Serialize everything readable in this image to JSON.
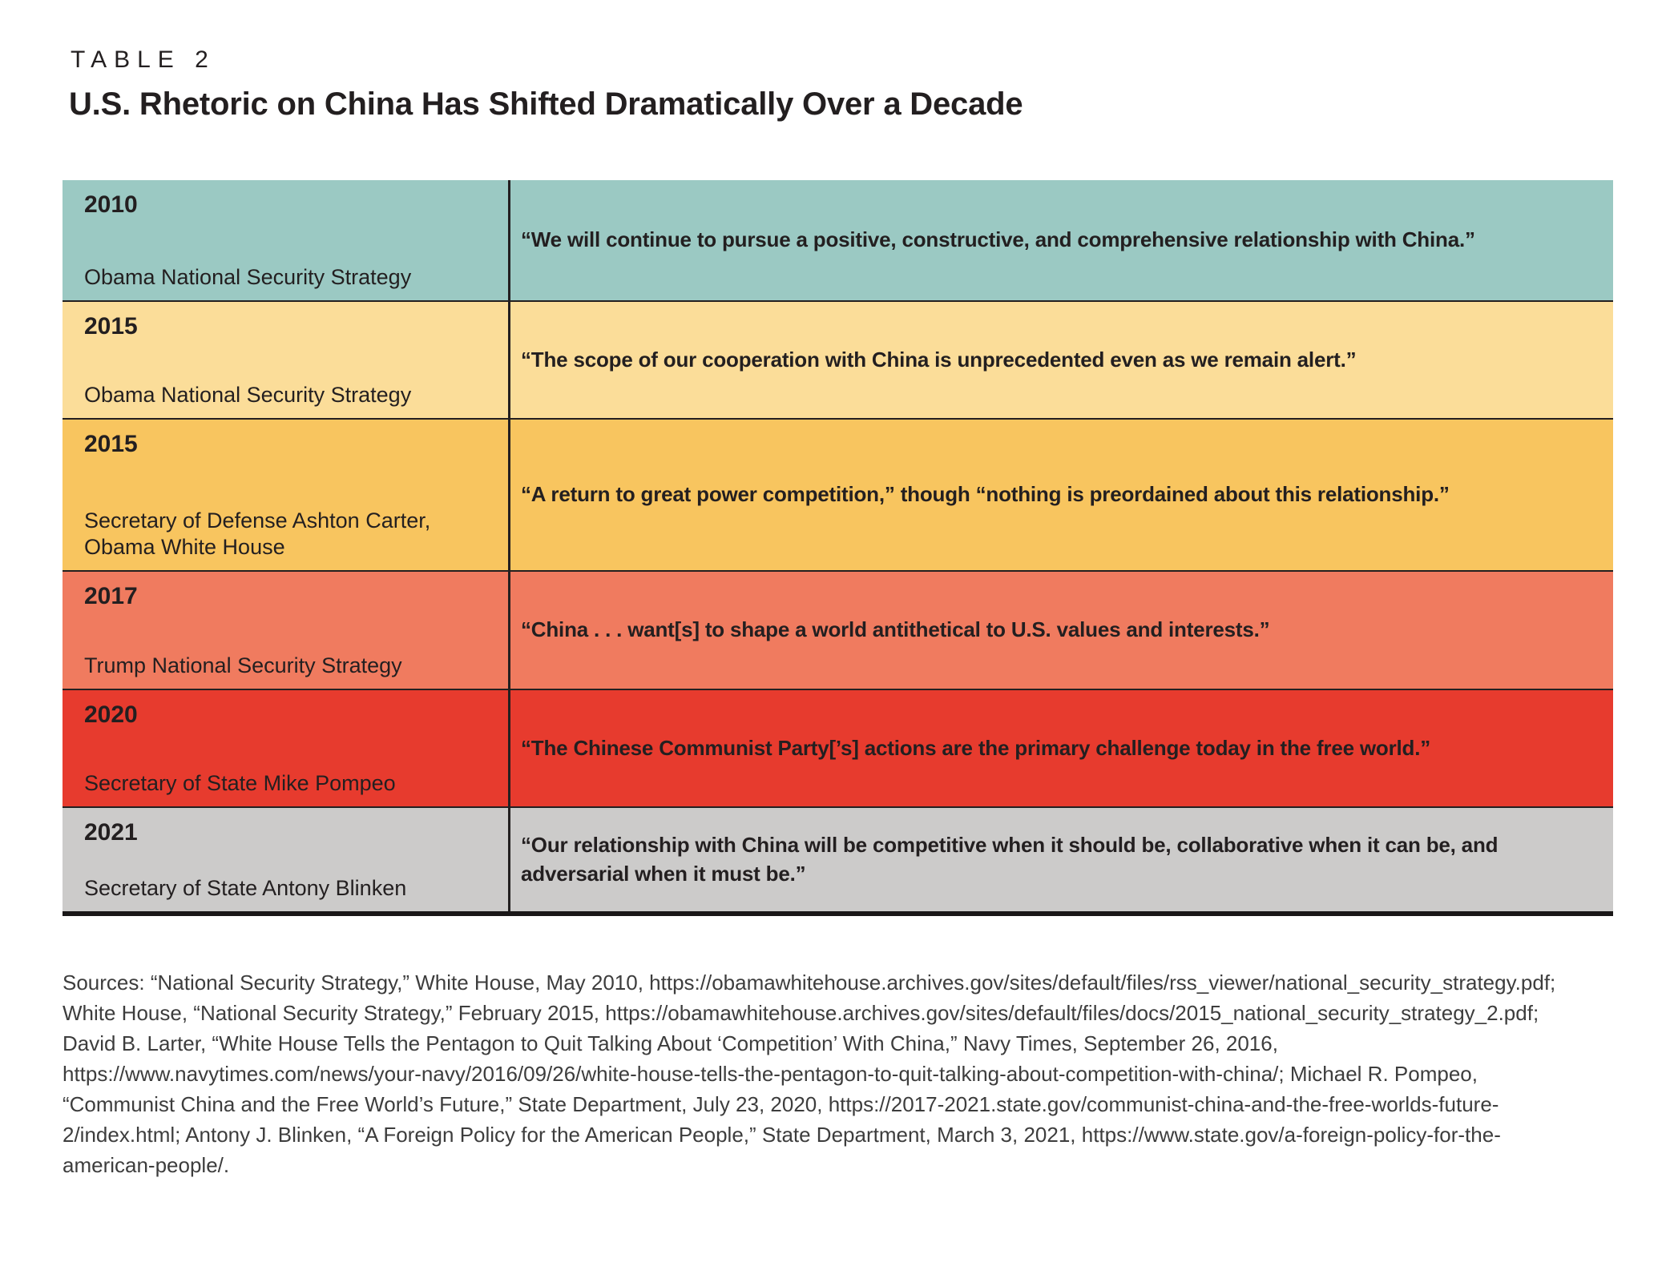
{
  "page": {
    "kicker": "TABLE 2",
    "title": "U.S. Rhetoric on China Has Shifted Dramatically Over a Decade"
  },
  "table": {
    "rows": [
      {
        "year": "2010",
        "attribution": "Obama National Security Strategy",
        "quote": "“We will continue to pursue a positive, constructive, and comprehensive relationship with China.”",
        "color": "#9bc9c3"
      },
      {
        "year": "2015",
        "attribution": "Obama National Security Strategy",
        "quote": "“The scope of our cooperation with China is unprecedented even as we remain alert.”",
        "color": "#fbdd99"
      },
      {
        "year": "2015",
        "attribution": "Secretary of Defense Ashton Carter,\nObama White House",
        "quote": "“A return to great power competition,” though “nothing is preordained about this relationship.”",
        "color": "#f8c55f"
      },
      {
        "year": "2017",
        "attribution": "Trump National Security Strategy",
        "quote": "“China . . . want[s] to shape a world antithetical to U.S. values and interests.”",
        "color": "#f07b5f"
      },
      {
        "year": "2020",
        "attribution": "Secretary of State Mike Pompeo",
        "quote": "“The Chinese Communist Party[’s] actions are the primary challenge today in the free world.”",
        "color": "#e73b2e"
      },
      {
        "year": "2021",
        "attribution": "Secretary of State Antony Blinken",
        "quote": "“Our relationship with China will be competitive when it should be, collaborative when it can be, and adversarial when it must be.”",
        "color": "#cccbca"
      }
    ]
  },
  "sources": {
    "text": "Sources: “National Security Strategy,” White House, May 2010, https://obamawhitehouse.archives.gov/sites/default/files/rss_viewer/national_security_strategy.pdf; White House, “National Security Strategy,” February 2015, https://obamawhitehouse.archives.gov/sites/default/files/docs/2015_national_security_strategy_2.pdf; David B. Larter, “White House Tells the Pentagon to Quit Talking About ‘Competition’ With China,” Navy Times, September 26, 2016, https://www.navytimes.com/news/your-navy/2016/09/26/white-house-tells-the-pentagon-to-quit-talking-about-competition-with-china/; Michael R. Pompeo, “Communist China and the Free World’s Future,” State Department, July 23, 2020, https://2017-2021.state.gov/communist-china-and-the-free-worlds-future-2/index.html; Antony J. Blinken, “A Foreign Policy for the American People,” State Department, March 3, 2021, https://www.state.gov/a-foreign-policy-for-the-american-people/."
  }
}
